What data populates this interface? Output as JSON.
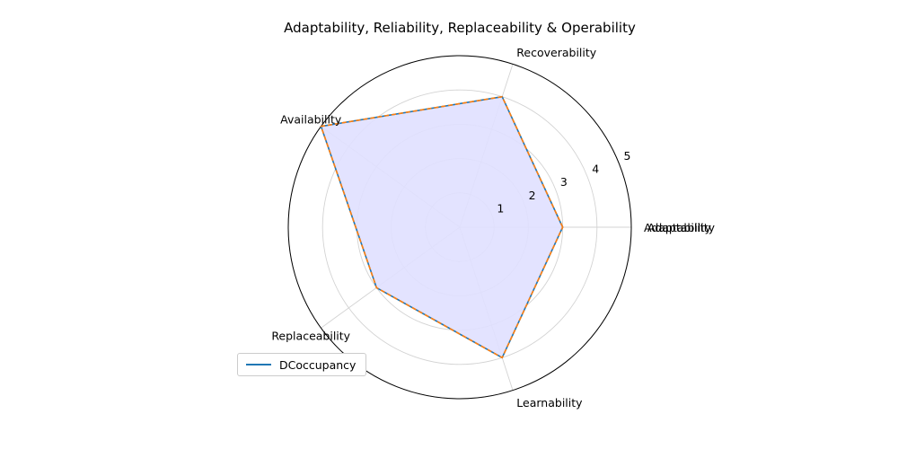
{
  "chart_data": {
    "type": "radar",
    "title": "Adaptability, Reliability, Replaceability & Operability",
    "categories": [
      "Adaptability",
      "Recoverability",
      "Availability",
      "Replaceability",
      "Learnability"
    ],
    "series": [
      {
        "name": "DCoccupancy",
        "values": [
          3,
          4,
          5,
          3,
          4
        ],
        "color": "#1f77b4",
        "fill": "#e0e0ff"
      },
      {
        "values": [
          3,
          4,
          5,
          3,
          4
        ],
        "color": "#ff7f0e",
        "linestyle": "dashed"
      }
    ],
    "extra_category_label": "Adaptability",
    "rlim": [
      0,
      5
    ],
    "rticks": [
      "1",
      "2",
      "3",
      "4",
      "5"
    ],
    "grid": true,
    "legend": "lower-left"
  }
}
